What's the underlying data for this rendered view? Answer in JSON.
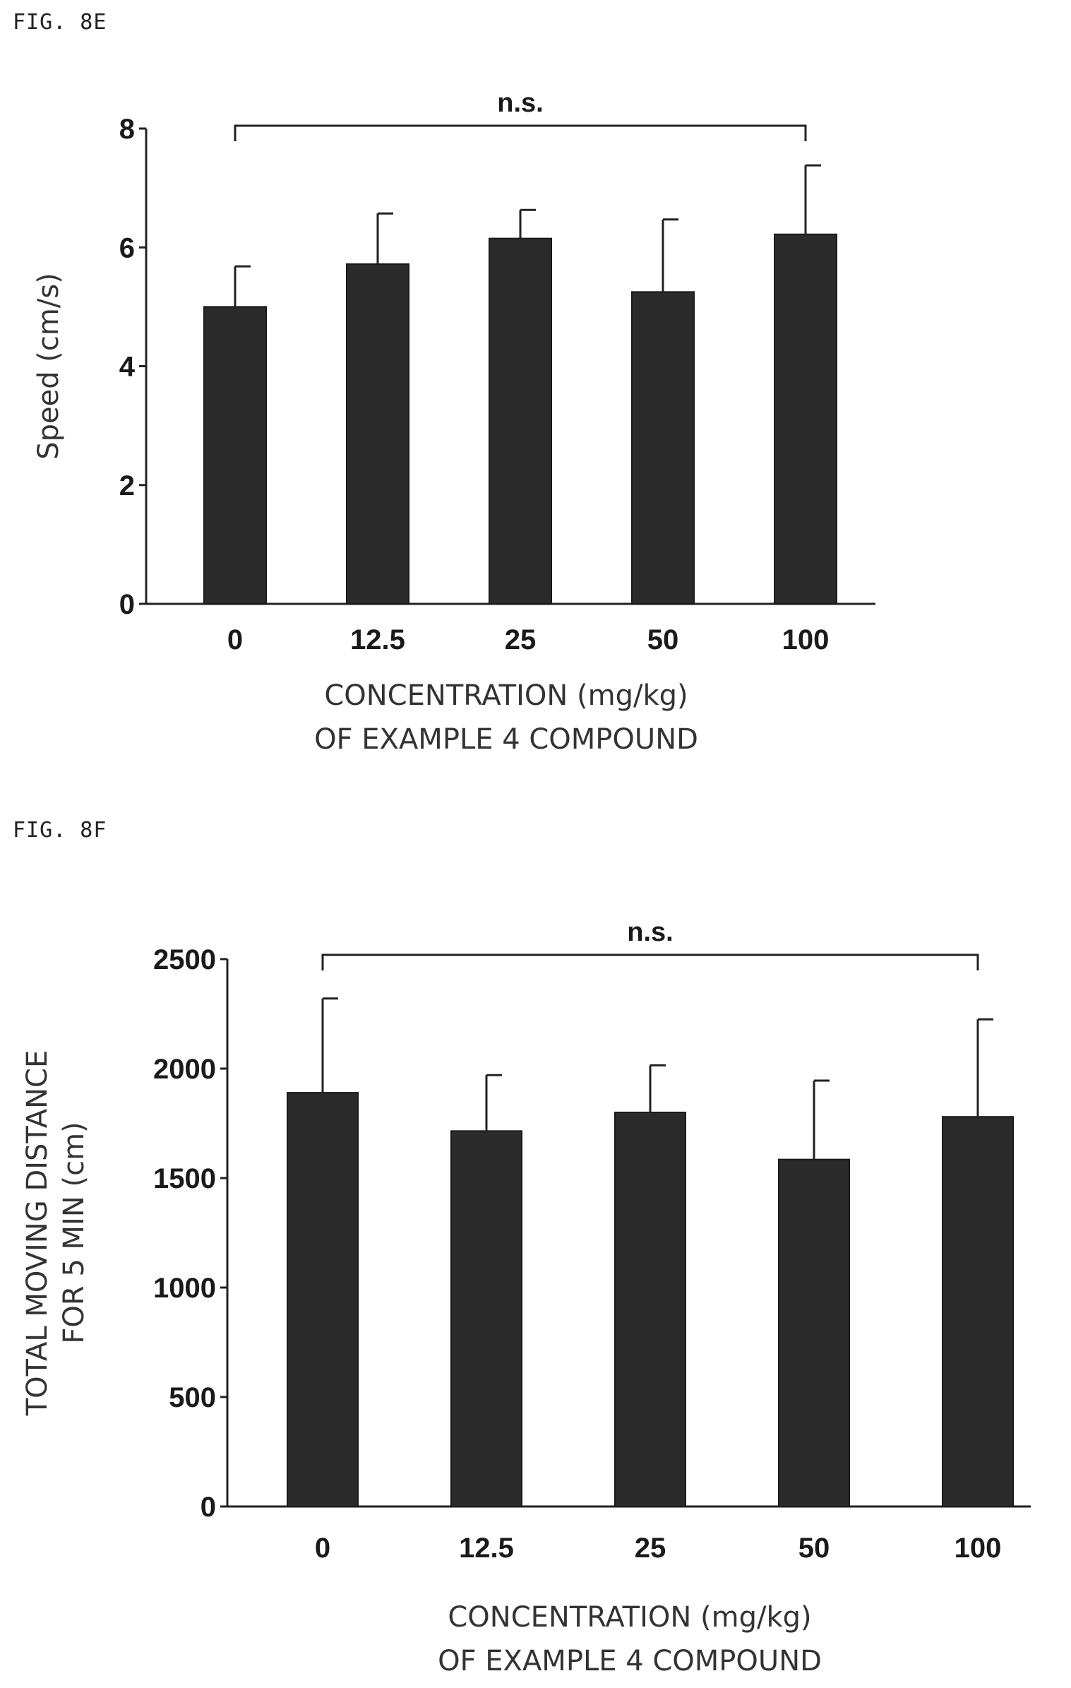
{
  "chart_data": [
    {
      "figure_label": "FIG. 8E",
      "type": "bar",
      "categories": [
        "0",
        "12.5",
        "25",
        "50",
        "100"
      ],
      "values": [
        5.0,
        5.72,
        6.15,
        5.25,
        6.22
      ],
      "error_upper": [
        5.68,
        6.57,
        6.63,
        6.47,
        7.38
      ],
      "ylim": [
        0,
        8
      ],
      "yticks": [
        "0",
        "2",
        "4",
        "6",
        "8"
      ],
      "ylabel_lines": [
        "Speed (cm/s)"
      ],
      "xlabel_lines": [
        "CONCENTRATION (mg/kg)",
        "OF EXAMPLE 4 COMPOUND"
      ],
      "annotation": "n.s.",
      "grid": false
    },
    {
      "figure_label": "FIG. 8F",
      "type": "bar",
      "categories": [
        "0",
        "12.5",
        "25",
        "50",
        "100"
      ],
      "values": [
        1890,
        1715,
        1800,
        1585,
        1780
      ],
      "error_upper": [
        2320,
        1970,
        2015,
        1945,
        2225
      ],
      "ylim": [
        0,
        2500
      ],
      "yticks": [
        "0",
        "500",
        "1000",
        "1500",
        "2000",
        "2500"
      ],
      "ylabel_lines": [
        "TOTAL MOVING DISTANCE",
        "FOR 5 MIN (cm)"
      ],
      "xlabel_lines": [
        "CONCENTRATION (mg/kg)",
        "OF EXAMPLE 4 COMPOUND"
      ],
      "annotation": "n.s.",
      "grid": false
    }
  ]
}
